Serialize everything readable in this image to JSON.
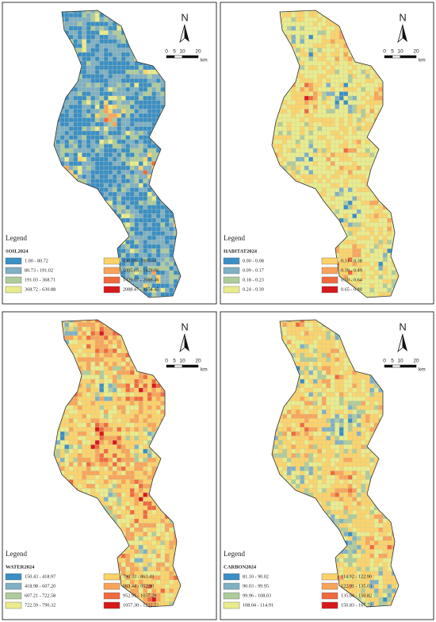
{
  "north": "N",
  "scale_bar": {
    "ticks": [
      "0",
      "5",
      "10",
      "20"
    ],
    "unit": "km"
  },
  "panels": [
    {
      "legend_heading": "Legend",
      "layer": "SOIL2024",
      "classes": [
        {
          "label": "1.00 - 80.72",
          "color": "#3a8fc4"
        },
        {
          "label": "80.73 - 191.02",
          "color": "#7fb0c4"
        },
        {
          "label": "191.03 - 368.71",
          "color": "#aecb9c"
        },
        {
          "label": "368.72 - 630.88",
          "color": "#e9ec8c"
        },
        {
          "label": "630.89 - 1005.64",
          "color": "#fbd36a"
        },
        {
          "label": "1005.65 - 1429.06",
          "color": "#f9a45a"
        },
        {
          "label": "1429.07 - 2088.46",
          "color": "#ef6a3e"
        },
        {
          "label": "2088.47 - 3554.45",
          "color": "#d7191c"
        }
      ]
    },
    {
      "legend_heading": "Legend",
      "layer": "HABITAT2024",
      "classes": [
        {
          "label": "0.00 - 0.08",
          "color": "#3a8fc4"
        },
        {
          "label": "0.09 - 0.17",
          "color": "#7fb0c4"
        },
        {
          "label": "0.18 - 0.23",
          "color": "#aecb9c"
        },
        {
          "label": "0.24 - 0.30",
          "color": "#e9ec8c"
        },
        {
          "label": "0.31 - 0.38",
          "color": "#fbd36a"
        },
        {
          "label": "0.39 - 0.49",
          "color": "#f9a45a"
        },
        {
          "label": "0.50 - 0.64",
          "color": "#ef6a3e"
        },
        {
          "label": "0.65 - 0.80",
          "color": "#d7191c"
        }
      ]
    },
    {
      "legend_heading": "Legend",
      "layer": "WATER2024",
      "classes": [
        {
          "label": "150.43 - 418.97",
          "color": "#3a8fc4"
        },
        {
          "label": "418.98 - 607.20",
          "color": "#7fb0c4"
        },
        {
          "label": "607.21 - 722.58",
          "color": "#aecb9c"
        },
        {
          "label": "722.59 - 790.32",
          "color": "#e9ec8c"
        },
        {
          "label": "790.33 - 863.43",
          "color": "#fbd36a"
        },
        {
          "label": "863.44 - 952.90",
          "color": "#f9a45a"
        },
        {
          "label": "952.91 - 1057.29",
          "color": "#ef6a3e"
        },
        {
          "label": "1057.30 - 1232.22",
          "color": "#d7191c"
        }
      ]
    },
    {
      "legend_heading": "Legend",
      "layer": "CARBON2024",
      "classes": [
        {
          "label": "81.10 - 90.02",
          "color": "#3a8fc4"
        },
        {
          "label": "90.03 - 99.95",
          "color": "#7fb0c4"
        },
        {
          "label": "99.96 - 108.03",
          "color": "#aecb9c"
        },
        {
          "label": "108.04 - 114.91",
          "color": "#e9ec8c"
        },
        {
          "label": "114.92 - 122.90",
          "color": "#fbd36a"
        },
        {
          "label": "122.91 - 135.03",
          "color": "#f9a45a"
        },
        {
          "label": "135.04 - 150.82",
          "color": "#ef6a3e"
        },
        {
          "label": "150.83 - 167.72",
          "color": "#d7191c"
        }
      ]
    }
  ]
}
